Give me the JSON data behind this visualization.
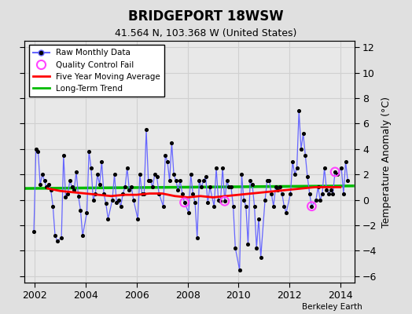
{
  "title": "BRIDGEPORT 18WSW",
  "subtitle": "41.564 N, 103.368 W (United States)",
  "ylabel": "Temperature Anomaly (°C)",
  "attribution": "Berkeley Earth",
  "xlim": [
    2001.6,
    2014.55
  ],
  "ylim": [
    -6.5,
    12.5
  ],
  "yticks": [
    -6,
    -4,
    -2,
    0,
    2,
    4,
    6,
    8,
    10,
    12
  ],
  "xticks": [
    2002,
    2004,
    2006,
    2008,
    2010,
    2012,
    2014
  ],
  "background_color": "#e0e0e0",
  "plot_bg_color": "#e8e8e8",
  "grid_color": "#d0d0d0",
  "raw_color": "#6666ff",
  "raw_line_color": "#6666ff",
  "dot_color": "#000000",
  "ma_color": "#ff0000",
  "trend_color": "#00bb00",
  "qc_color": "#ff44ff",
  "raw_data": {
    "times": [
      2001.958,
      2002.042,
      2002.125,
      2002.208,
      2002.292,
      2002.375,
      2002.458,
      2002.542,
      2002.625,
      2002.708,
      2002.792,
      2002.875,
      2003.042,
      2003.125,
      2003.208,
      2003.292,
      2003.375,
      2003.458,
      2003.542,
      2003.625,
      2003.708,
      2003.792,
      2003.875,
      2004.042,
      2004.125,
      2004.208,
      2004.292,
      2004.375,
      2004.458,
      2004.542,
      2004.625,
      2004.708,
      2004.792,
      2004.875,
      2005.042,
      2005.125,
      2005.208,
      2005.292,
      2005.375,
      2005.458,
      2005.542,
      2005.625,
      2005.708,
      2005.792,
      2005.875,
      2006.042,
      2006.125,
      2006.208,
      2006.292,
      2006.375,
      2006.458,
      2006.542,
      2006.625,
      2006.708,
      2006.792,
      2006.875,
      2007.042,
      2007.125,
      2007.208,
      2007.292,
      2007.375,
      2007.458,
      2007.542,
      2007.625,
      2007.708,
      2007.792,
      2007.875,
      2008.042,
      2008.125,
      2008.208,
      2008.292,
      2008.375,
      2008.458,
      2008.542,
      2008.625,
      2008.708,
      2008.792,
      2008.875,
      2009.042,
      2009.125,
      2009.208,
      2009.292,
      2009.375,
      2009.458,
      2009.542,
      2009.625,
      2009.708,
      2009.792,
      2009.875,
      2010.042,
      2010.125,
      2010.208,
      2010.292,
      2010.375,
      2010.458,
      2010.542,
      2010.625,
      2010.708,
      2010.792,
      2010.875,
      2011.042,
      2011.125,
      2011.208,
      2011.292,
      2011.375,
      2011.458,
      2011.542,
      2011.625,
      2011.708,
      2011.792,
      2011.875,
      2012.042,
      2012.125,
      2012.208,
      2012.292,
      2012.375,
      2012.458,
      2012.542,
      2012.625,
      2012.708,
      2012.792,
      2012.875,
      2013.042,
      2013.125,
      2013.208,
      2013.292,
      2013.375,
      2013.458,
      2013.542,
      2013.625,
      2013.708,
      2013.792,
      2013.875,
      2014.042,
      2014.125,
      2014.208,
      2014.292
    ],
    "values": [
      -2.5,
      4.0,
      3.8,
      1.2,
      2.0,
      1.5,
      1.0,
      1.2,
      0.8,
      -0.5,
      -2.8,
      -3.2,
      -3.0,
      3.5,
      0.2,
      0.5,
      1.5,
      1.0,
      0.8,
      2.2,
      0.3,
      -0.8,
      -2.8,
      -1.0,
      3.8,
      2.5,
      0.0,
      0.5,
      2.0,
      1.2,
      3.0,
      0.5,
      -0.3,
      -1.5,
      0.0,
      2.0,
      -0.2,
      0.0,
      -0.5,
      0.5,
      1.0,
      2.5,
      0.8,
      1.0,
      0.0,
      -1.5,
      2.0,
      0.5,
      0.5,
      5.5,
      1.5,
      1.5,
      1.0,
      2.0,
      1.8,
      0.5,
      -0.5,
      3.5,
      3.0,
      1.5,
      4.5,
      2.0,
      1.5,
      0.8,
      1.5,
      0.5,
      -0.2,
      -1.0,
      2.0,
      0.5,
      -0.2,
      -3.0,
      1.5,
      1.0,
      1.5,
      1.8,
      -0.2,
      1.0,
      -0.5,
      2.5,
      0.0,
      -0.1,
      2.5,
      -0.1,
      1.5,
      1.0,
      1.0,
      -0.5,
      -3.8,
      -5.5,
      2.0,
      0.0,
      -0.5,
      -3.5,
      1.5,
      1.2,
      -0.5,
      -3.8,
      -1.5,
      -4.5,
      0.0,
      1.5,
      1.5,
      0.5,
      -0.5,
      1.0,
      0.8,
      1.0,
      0.5,
      -0.5,
      -1.0,
      0.5,
      3.0,
      2.0,
      2.5,
      7.0,
      4.0,
      5.2,
      3.5,
      1.8,
      0.5,
      -0.5,
      0.0,
      1.0,
      0.0,
      0.5,
      2.5,
      0.8,
      0.5,
      0.8,
      0.5,
      2.2,
      2.0,
      2.5,
      0.5,
      3.0,
      1.5
    ]
  },
  "qc_fail_points": [
    {
      "t": 2007.875,
      "v": -0.2
    },
    {
      "t": 2009.458,
      "v": -0.1
    },
    {
      "t": 2012.875,
      "v": -0.5
    },
    {
      "t": 2013.792,
      "v": 2.2
    }
  ],
  "moving_avg": {
    "times": [
      2002.5,
      2003.0,
      2003.5,
      2004.0,
      2004.5,
      2005.0,
      2005.5,
      2006.0,
      2006.5,
      2007.0,
      2007.5,
      2008.0,
      2008.5,
      2009.0,
      2009.5,
      2010.0,
      2010.5,
      2011.0,
      2011.5,
      2012.0,
      2012.5,
      2013.0,
      2013.5,
      2014.0
    ],
    "values": [
      0.9,
      0.7,
      0.6,
      0.5,
      0.4,
      0.3,
      0.4,
      0.4,
      0.5,
      0.5,
      0.3,
      0.2,
      0.3,
      0.2,
      0.3,
      0.4,
      0.5,
      0.6,
      0.7,
      0.8,
      0.9,
      1.0,
      1.0,
      1.0
    ]
  },
  "trend": {
    "times": [
      2001.6,
      2014.55
    ],
    "values": [
      0.9,
      1.1
    ]
  }
}
